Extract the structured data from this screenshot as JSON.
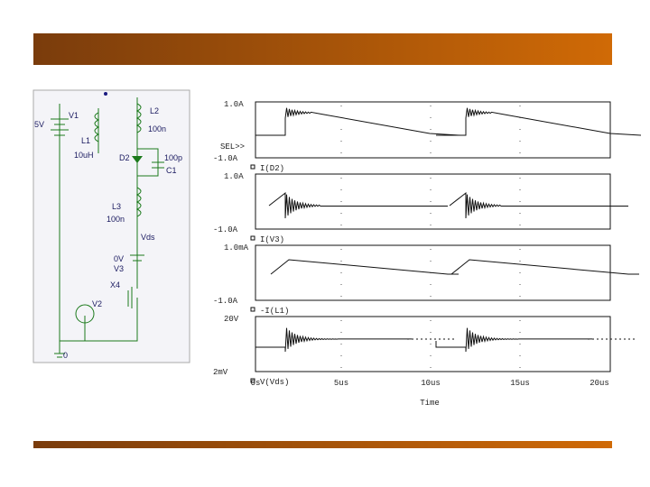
{
  "schematic": {
    "labels": [
      "5V",
      "V1",
      "L1",
      "10uH",
      "L2",
      "100n",
      "D2",
      "100p",
      "C1",
      "L3",
      "100n",
      "Vds",
      "0V",
      "V3",
      "X4",
      "V2",
      "0"
    ]
  },
  "plots": [
    {
      "top_label": "1.0A",
      "extra_label": "SEL>>",
      "bottom_label": "-1.0A",
      "trace": "I(D2)"
    },
    {
      "top_label": "1.0A",
      "bottom_label": "-1.0A",
      "trace": "I(V3)"
    },
    {
      "top_label": "1.0mA",
      "bottom_label": "-1.0A",
      "trace": "-I(L1)"
    },
    {
      "top_label": "20V",
      "bottom_label": "2mV",
      "trace": "V(Vds)"
    }
  ],
  "x_axis": {
    "ticks": [
      "0s",
      "5us",
      "10us",
      "15us",
      "20us"
    ],
    "label": "Time"
  }
}
